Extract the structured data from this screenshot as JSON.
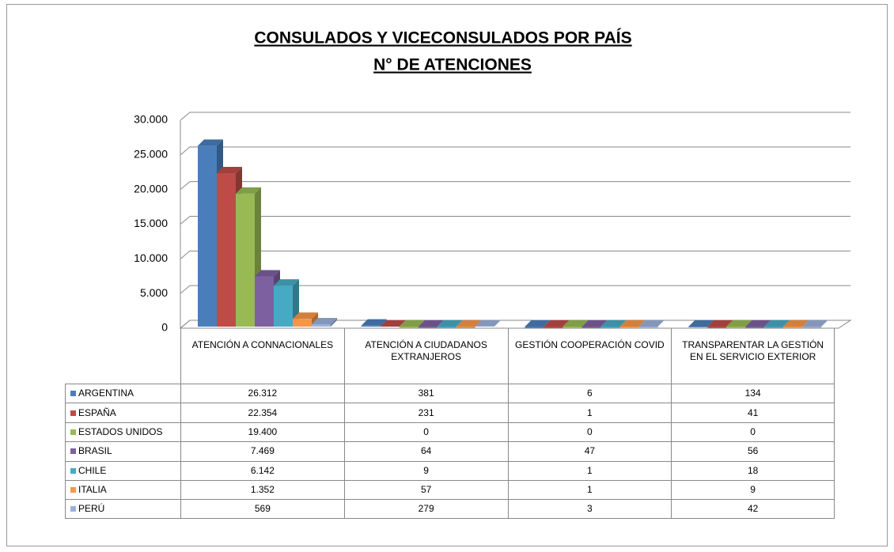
{
  "chart_data": {
    "type": "bar3d",
    "title": "CONSULADOS Y VICECONSULADOS POR PAÍS",
    "subtitle": "N° DE ATENCIONES",
    "categories": [
      "ATENCIÓN A CONNACIONALES",
      "ATENCIÓN A CIUDADANOS EXTRANJEROS",
      "GESTIÓN COOPERACIÓN COVID",
      "TRANSPARENTAR LA GESTIÓN EN EL SERVICIO EXTERIOR"
    ],
    "series": [
      {
        "name": "ARGENTINA",
        "color": "#4a7ebb",
        "values": [
          26312,
          381,
          6,
          134
        ],
        "value_labels": [
          "26.312",
          "381",
          "6",
          "134"
        ]
      },
      {
        "name": "ESPAÑA",
        "color": "#be4b48",
        "values": [
          22354,
          231,
          1,
          41
        ],
        "value_labels": [
          "22.354",
          "231",
          "1",
          "41"
        ]
      },
      {
        "name": "ESTADOS UNIDOS",
        "color": "#98b954",
        "values": [
          19400,
          0,
          0,
          0
        ],
        "value_labels": [
          "19.400",
          "0",
          "0",
          "0"
        ]
      },
      {
        "name": "BRASIL",
        "color": "#7d60a0",
        "values": [
          7469,
          64,
          47,
          56
        ],
        "value_labels": [
          "7.469",
          "64",
          "47",
          "56"
        ]
      },
      {
        "name": "CHILE",
        "color": "#46aac5",
        "values": [
          6142,
          9,
          1,
          18
        ],
        "value_labels": [
          "6.142",
          "9",
          "1",
          "18"
        ]
      },
      {
        "name": "ITALIA",
        "color": "#f79646",
        "values": [
          1352,
          57,
          1,
          9
        ],
        "value_labels": [
          "1.352",
          "57",
          "1",
          "9"
        ]
      },
      {
        "name": "PERÚ",
        "color": "#9bb1db",
        "values": [
          569,
          279,
          3,
          42
        ],
        "value_labels": [
          "569",
          "279",
          "3",
          "42"
        ]
      }
    ],
    "ylim": [
      0,
      30000
    ],
    "yticks": [
      0,
      {
        "value": 5000,
        "label": "5.000"
      },
      {
        "value": 10000,
        "label": "10.000"
      },
      {
        "value": 15000,
        "label": "15.000"
      },
      {
        "value": 20000,
        "label": "20.000"
      },
      {
        "value": 25000,
        "label": "25.000"
      },
      {
        "value": 30000,
        "label": "30.000"
      }
    ],
    "grid": true
  }
}
